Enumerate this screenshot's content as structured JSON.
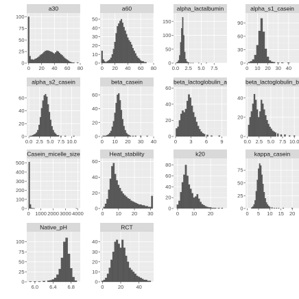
{
  "chart_data": [
    {
      "type": "bar",
      "title": "a30",
      "xlim": [
        -3,
        80
      ],
      "ylim": [
        0,
        108
      ],
      "xticks": [
        0,
        20,
        40,
        60,
        80
      ],
      "yticks": [
        0,
        25,
        50,
        75,
        100
      ],
      "x": [
        0,
        2,
        4,
        6,
        8,
        10,
        12,
        14,
        16,
        18,
        20,
        22,
        24,
        26,
        28,
        30,
        32,
        34,
        36,
        38,
        40,
        42,
        44,
        46,
        48,
        50,
        52,
        54,
        56,
        58,
        60,
        62,
        64,
        66,
        68,
        70,
        72,
        74,
        76
      ],
      "values": [
        100,
        15,
        8,
        8,
        7,
        9,
        10,
        12,
        14,
        17,
        19,
        21,
        24,
        26,
        27,
        27,
        26,
        25,
        24,
        22,
        20,
        23,
        26,
        25,
        22,
        19,
        17,
        14,
        11,
        9,
        7,
        5,
        3,
        2,
        1,
        1,
        0,
        0,
        1
      ]
    },
    {
      "type": "bar",
      "title": "a60",
      "xlim": [
        -3,
        80
      ],
      "ylim": [
        0,
        57
      ],
      "xticks": [
        0,
        20,
        40,
        60,
        80
      ],
      "yticks": [
        0,
        10,
        20,
        30,
        40,
        50
      ],
      "x": [
        0,
        2,
        4,
        6,
        8,
        10,
        12,
        14,
        16,
        18,
        20,
        22,
        24,
        26,
        28,
        30,
        32,
        34,
        36,
        38,
        40,
        42,
        44,
        46,
        48,
        50,
        52,
        54,
        56,
        58,
        60,
        62,
        64,
        66,
        68,
        70
      ],
      "values": [
        14,
        4,
        2,
        1,
        2,
        3,
        4,
        6,
        10,
        16,
        24,
        34,
        42,
        45,
        48,
        50,
        46,
        41,
        37,
        33,
        29,
        26,
        24,
        21,
        17,
        14,
        11,
        8,
        6,
        5,
        3,
        2,
        2,
        1,
        1,
        0
      ]
    },
    {
      "type": "bar",
      "title": "alpha_lactalbumin",
      "xlim": [
        -0.4,
        10
      ],
      "ylim": [
        0,
        180
      ],
      "xticks": [
        0.0,
        2.5,
        5.0,
        7.5
      ],
      "yticks": [
        0,
        50,
        100,
        150
      ],
      "x": [
        0.2,
        0.4,
        0.6,
        0.8,
        1.0,
        1.2,
        1.4,
        1.6,
        1.8,
        2.0,
        2.2,
        2.4,
        2.6,
        3.0,
        3.4,
        4.5,
        6.0
      ],
      "values": [
        2,
        4,
        10,
        28,
        75,
        125,
        165,
        100,
        40,
        14,
        6,
        3,
        2,
        1,
        1,
        1,
        1
      ]
    },
    {
      "type": "bar",
      "title": "alpha_s1_casein",
      "xlim": [
        -1.5,
        50
      ],
      "ylim": [
        0,
        112
      ],
      "xticks": [
        0,
        10,
        20,
        30,
        40
      ],
      "yticks": [
        0,
        30,
        60,
        90
      ],
      "x": [
        2,
        4,
        6,
        8,
        10,
        12,
        14,
        16,
        18,
        20,
        22,
        24,
        26,
        30,
        34,
        40
      ],
      "values": [
        2,
        4,
        8,
        18,
        40,
        72,
        100,
        70,
        32,
        14,
        6,
        3,
        2,
        1,
        1,
        1
      ]
    },
    {
      "type": "bar",
      "title": "alpha_s2_casein",
      "xlim": [
        -0.5,
        12
      ],
      "ylim": [
        0,
        78
      ],
      "xticks": [
        0.0,
        2.5,
        5.0,
        7.5,
        10.0
      ],
      "yticks": [
        0,
        20,
        40,
        60
      ],
      "x": [
        0.3,
        0.6,
        0.9,
        1.2,
        1.5,
        1.8,
        2.1,
        2.4,
        2.7,
        3.0,
        3.3,
        3.6,
        3.9,
        4.2,
        4.5,
        4.8,
        5.1,
        5.4,
        5.7,
        6.0,
        6.3,
        6.6,
        6.9,
        7.5,
        8.5,
        10.5
      ],
      "values": [
        1,
        1,
        2,
        3,
        4,
        6,
        10,
        18,
        30,
        44,
        56,
        64,
        66,
        62,
        50,
        38,
        26,
        16,
        10,
        6,
        4,
        2,
        2,
        1,
        1,
        1
      ]
    },
    {
      "type": "bar",
      "title": "beta_casein",
      "xlim": [
        -1.5,
        40
      ],
      "ylim": [
        0,
        72
      ],
      "xticks": [
        0,
        10,
        20,
        30,
        40
      ],
      "yticks": [
        0,
        20,
        40,
        60
      ],
      "x": [
        1,
        2,
        3,
        4,
        5,
        6,
        7,
        8,
        9,
        10,
        11,
        12,
        13,
        14,
        15,
        16,
        17,
        18,
        19,
        20,
        21,
        22,
        24,
        26,
        30,
        35
      ],
      "values": [
        1,
        1,
        1,
        2,
        3,
        5,
        8,
        14,
        22,
        34,
        48,
        60,
        62,
        52,
        38,
        25,
        15,
        9,
        5,
        3,
        2,
        1,
        1,
        1,
        1,
        1
      ]
    },
    {
      "type": "bar",
      "title": "beta_lactoglobulin_a",
      "xlim": [
        -0.4,
        10
      ],
      "ylim": [
        0,
        62
      ],
      "xticks": [
        0,
        3,
        6,
        9
      ],
      "yticks": [
        0,
        20,
        40,
        60
      ],
      "x": [
        0.2,
        0.5,
        0.8,
        1.1,
        1.4,
        1.7,
        2.0,
        2.3,
        2.6,
        2.9,
        3.2,
        3.5,
        3.8,
        4.1,
        4.4,
        4.7,
        5.0,
        5.3,
        5.6,
        6.2,
        7.0,
        8.5
      ],
      "values": [
        10,
        12,
        20,
        28,
        32,
        30,
        34,
        44,
        52,
        48,
        38,
        30,
        24,
        18,
        13,
        9,
        6,
        4,
        3,
        2,
        1,
        1
      ]
    },
    {
      "type": "bar",
      "title": "beta_lactoglobulin_b",
      "xlim": [
        -0.4,
        11
      ],
      "ylim": [
        0,
        52
      ],
      "xticks": [
        0.0,
        2.5,
        5.0,
        7.5,
        10.0
      ],
      "yticks": [
        0,
        20,
        40
      ],
      "x": [
        0.3,
        0.6,
        0.9,
        1.2,
        1.5,
        1.8,
        2.1,
        2.4,
        2.7,
        3.0,
        3.3,
        3.6,
        3.9,
        4.2,
        4.5,
        4.8,
        5.1,
        5.4,
        5.7,
        6.0,
        6.5,
        7.2,
        8.0,
        9.0,
        10.0
      ],
      "values": [
        12,
        20,
        26,
        34,
        44,
        38,
        28,
        20,
        26,
        38,
        34,
        28,
        22,
        17,
        13,
        10,
        8,
        6,
        5,
        4,
        3,
        2,
        2,
        1,
        1
      ]
    },
    {
      "type": "bar",
      "title": "Casein_micelle_size",
      "xlim": [
        -150,
        4200
      ],
      "ylim": [
        0,
        550
      ],
      "xticks": [
        0,
        1000,
        2000,
        3000,
        4000
      ],
      "yticks": [
        0,
        100,
        200,
        300,
        400,
        500
      ],
      "x": [
        50,
        150,
        250,
        350,
        450,
        3900
      ],
      "values": [
        510,
        45,
        6,
        3,
        1,
        1
      ]
    },
    {
      "type": "bar",
      "title": "Heat_stability",
      "xlim": [
        -1.5,
        32
      ],
      "ylim": [
        0,
        64
      ],
      "xticks": [
        0,
        10,
        20,
        30
      ],
      "yticks": [
        0,
        20,
        40,
        60
      ],
      "x": [
        1,
        2,
        3,
        4,
        5,
        6,
        7,
        8,
        9,
        10,
        11,
        12,
        13,
        14,
        15,
        16,
        17,
        18,
        19,
        20,
        21,
        22,
        23,
        24,
        25,
        26,
        27,
        28,
        29,
        30,
        31
      ],
      "values": [
        2,
        6,
        12,
        24,
        38,
        54,
        58,
        44,
        36,
        30,
        26,
        22,
        19,
        17,
        15,
        13,
        12,
        10,
        9,
        8,
        7,
        6,
        5,
        5,
        4,
        4,
        3,
        3,
        2,
        2,
        16
      ]
    },
    {
      "type": "bar",
      "title": "k20",
      "xlim": [
        -2.5,
        30
      ],
      "ylim": [
        0,
        92
      ],
      "xticks": [
        0,
        10,
        20
      ],
      "yticks": [
        0,
        20,
        40,
        60,
        80
      ],
      "x": [
        0,
        1,
        2,
        3,
        4,
        5,
        6,
        7,
        8,
        9,
        10,
        11,
        12,
        13,
        14,
        15,
        16,
        17,
        18,
        19,
        20,
        21,
        22,
        23,
        25,
        27
      ],
      "values": [
        7,
        14,
        30,
        48,
        62,
        80,
        60,
        44,
        36,
        28,
        20,
        22,
        26,
        18,
        12,
        8,
        6,
        4,
        3,
        2,
        2,
        1,
        1,
        1,
        1,
        1
      ]
    },
    {
      "type": "bar",
      "title": "kappa_casein",
      "xlim": [
        -0.8,
        23
      ],
      "ylim": [
        0,
        98
      ],
      "xticks": [
        0,
        5,
        10,
        15,
        20
      ],
      "yticks": [
        0,
        25,
        50,
        75
      ],
      "x": [
        2.0,
        2.5,
        3.0,
        3.5,
        4.0,
        4.5,
        5.0,
        5.5,
        6.0,
        6.5,
        7.0,
        7.5,
        8.0,
        8.5,
        9.0,
        9.5,
        10.0,
        11.0,
        12.0,
        13.0,
        14.0,
        16.0,
        20.0
      ],
      "values": [
        2,
        4,
        8,
        16,
        34,
        56,
        78,
        88,
        84,
        66,
        48,
        32,
        20,
        12,
        8,
        5,
        3,
        2,
        1,
        1,
        1,
        1,
        1
      ]
    },
    {
      "type": "bar",
      "title": "Native_pH",
      "xlim": [
        5.82,
        7.0
      ],
      "ylim": [
        0,
        125
      ],
      "xticks": [
        6.0,
        6.4,
        6.8
      ],
      "yticks": [
        0,
        25,
        50,
        75,
        100
      ],
      "x": [
        5.9,
        6.0,
        6.1,
        6.2,
        6.3,
        6.35,
        6.4,
        6.45,
        6.5,
        6.55,
        6.6,
        6.65,
        6.7,
        6.75,
        6.8,
        6.85,
        6.9
      ],
      "values": [
        1,
        1,
        1,
        2,
        3,
        4,
        6,
        10,
        18,
        32,
        60,
        100,
        110,
        70,
        34,
        12,
        3
      ]
    },
    {
      "type": "bar",
      "title": "RCT",
      "xlim": [
        -2.5,
        56
      ],
      "ylim": [
        0,
        50
      ],
      "xticks": [
        0,
        20,
        40
      ],
      "yticks": [
        0,
        10,
        20,
        30,
        40
      ],
      "x": [
        0,
        2,
        4,
        6,
        8,
        10,
        12,
        14,
        16,
        18,
        20,
        22,
        24,
        26,
        28,
        30,
        32,
        34,
        36,
        38,
        40,
        42,
        44,
        46,
        48,
        50,
        52
      ],
      "values": [
        1,
        2,
        4,
        8,
        14,
        22,
        30,
        40,
        42,
        38,
        34,
        42,
        34,
        26,
        20,
        14,
        12,
        10,
        8,
        6,
        5,
        4,
        3,
        2,
        2,
        1,
        1
      ]
    }
  ],
  "colors": {
    "bar_fill": "#595959",
    "bar_outline": "#4a4a4a",
    "panel_bg": "#ebebeb",
    "grid_major": "#ffffff",
    "strip_bg": "#d9d9d9",
    "tick_text": "#4d4d4d",
    "strip_text": "#1a1a1a"
  }
}
